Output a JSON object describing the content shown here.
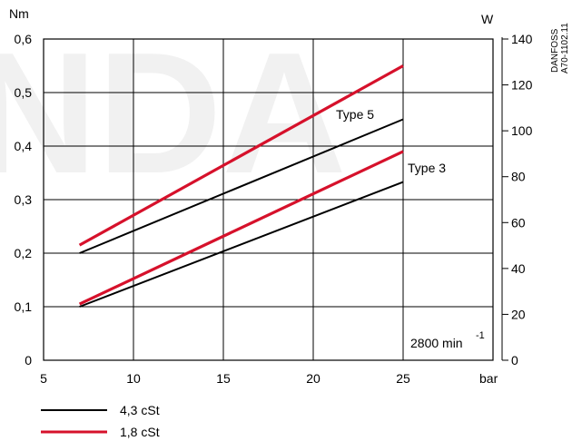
{
  "chart_data": {
    "type": "line",
    "title": "",
    "xlabel": "bar",
    "ylabel": "Nm",
    "y2label": "W",
    "xlim": [
      5,
      30
    ],
    "x_ticks": [
      5,
      10,
      15,
      20,
      25
    ],
    "ylim": [
      0,
      0.6
    ],
    "y_ticks": [
      "0",
      "0,1",
      "0,2",
      "0,3",
      "0,4",
      "0,5",
      "0,6"
    ],
    "y2lim": [
      0,
      140
    ],
    "y2_ticks": [
      "0",
      "20",
      "40",
      "60",
      "80",
      "100",
      "120",
      "140"
    ],
    "grid": true,
    "annotations": {
      "type5": "Type 5",
      "type3": "Type 3",
      "speed": "2800 min",
      "speed_exp": "-1"
    },
    "document_code": [
      "DANFOSS",
      "A70-1102.11"
    ],
    "watermark": "NDA",
    "legend": [
      {
        "label": "4,3 cSt",
        "color": "#000000"
      },
      {
        "label": "1,8 cSt",
        "color": "#d6112b"
      }
    ],
    "series": [
      {
        "group": "Type 5",
        "legend": "1,8 cSt",
        "color": "#d6112b",
        "x": [
          7,
          25
        ],
        "y": [
          0.215,
          0.55
        ]
      },
      {
        "group": "Type 5",
        "legend": "4,3 cSt",
        "color": "#000000",
        "x": [
          7,
          25
        ],
        "y": [
          0.2,
          0.45
        ]
      },
      {
        "group": "Type 3",
        "legend": "1,8 cSt",
        "color": "#d6112b",
        "x": [
          7,
          25
        ],
        "y": [
          0.105,
          0.39
        ]
      },
      {
        "group": "Type 3",
        "legend": "4,3 cSt",
        "color": "#000000",
        "x": [
          7,
          25
        ],
        "y": [
          0.1,
          0.333
        ]
      }
    ]
  }
}
